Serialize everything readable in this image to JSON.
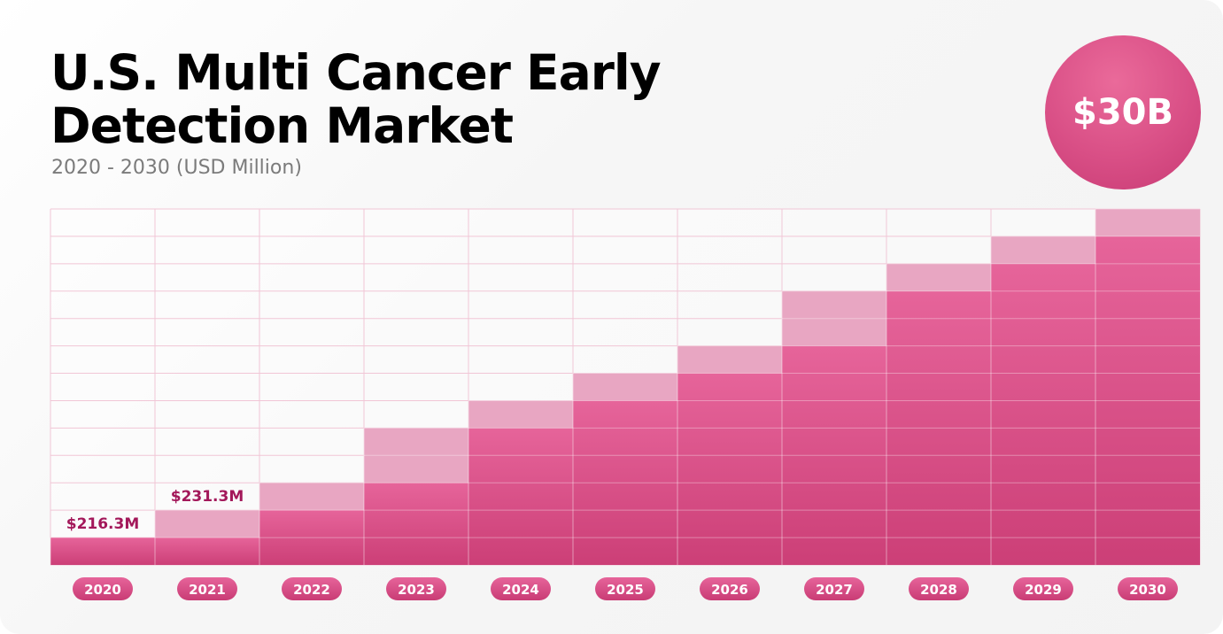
{
  "title": "U.S. Multi Cancer Early Detection Market",
  "subtitle": "2020 - 2030 (USD Million)",
  "badge": "$30B",
  "colors": {
    "bar_solid": "#e05b91",
    "bar_light": "#e8a6c2",
    "pill": "#d94f86",
    "label_text": "#a3185a",
    "grid": "#f1c6d6"
  },
  "chart_data": {
    "type": "bar",
    "title": "U.S. Multi Cancer Early Detection Market",
    "subtitle": "2020 - 2030 (USD Million)",
    "categories": [
      "2020",
      "2021",
      "2022",
      "2023",
      "2024",
      "2025",
      "2026",
      "2027",
      "2028",
      "2029",
      "2030"
    ],
    "grid": true,
    "rows": 13,
    "series": [
      {
        "role": "base",
        "values": [
          1,
          1,
          2,
          3,
          5,
          6,
          7,
          8,
          10,
          11,
          12
        ]
      },
      {
        "role": "increment",
        "values": [
          0,
          1,
          1,
          2,
          1,
          1,
          1,
          2,
          1,
          1,
          1
        ]
      }
    ],
    "data_labels": [
      {
        "category": "2020",
        "text": "$216.3M"
      },
      {
        "category": "2021",
        "text": "$231.3M"
      }
    ]
  }
}
